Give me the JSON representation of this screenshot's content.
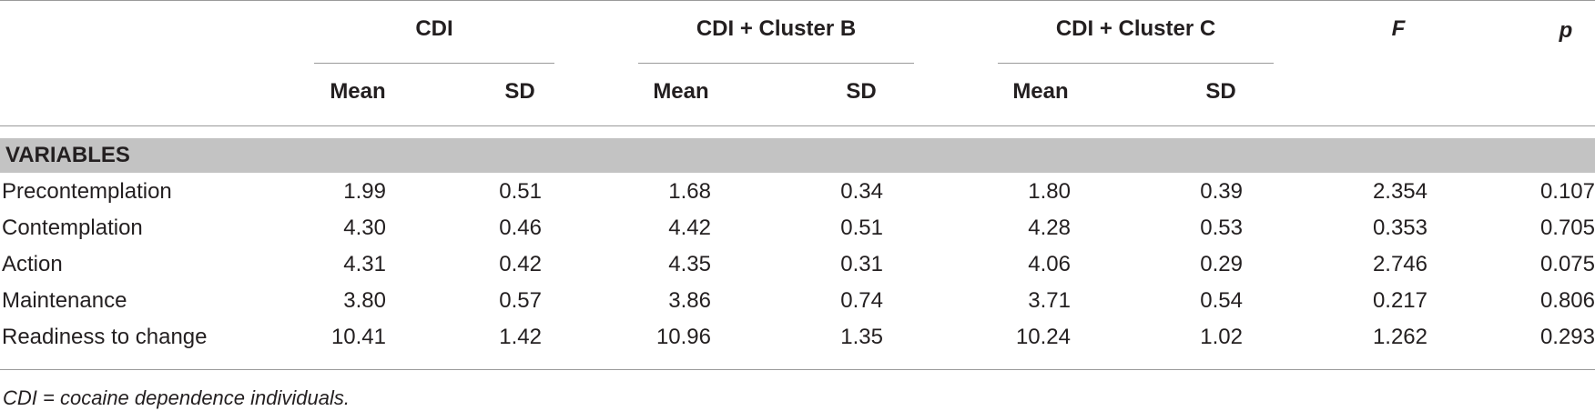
{
  "table": {
    "groups": [
      "CDI",
      "CDI + Cluster B",
      "CDI + Cluster C"
    ],
    "stat_headers": {
      "f": "F",
      "p": "p"
    },
    "subheaders": [
      "Mean",
      "SD",
      "Mean",
      "SD",
      "Mean",
      "SD"
    ],
    "section_label": "VARIABLES",
    "rows": [
      {
        "label": "Precontemplation",
        "values": [
          "1.99",
          "0.51",
          "1.68",
          "0.34",
          "1.80",
          "0.39",
          "2.354",
          "0.107"
        ]
      },
      {
        "label": "Contemplation",
        "values": [
          "4.30",
          "0.46",
          "4.42",
          "0.51",
          "4.28",
          "0.53",
          "0.353",
          "0.705"
        ]
      },
      {
        "label": "Action",
        "values": [
          "4.31",
          "0.42",
          "4.35",
          "0.31",
          "4.06",
          "0.29",
          "2.746",
          "0.075"
        ]
      },
      {
        "label": "Maintenance",
        "values": [
          "3.80",
          "0.57",
          "3.86",
          "0.74",
          "3.71",
          "0.54",
          "0.217",
          "0.806"
        ]
      },
      {
        "label": "Readiness to change",
        "values": [
          "10.41",
          "1.42",
          "10.96",
          "1.35",
          "10.24",
          "1.02",
          "1.262",
          "0.293"
        ]
      }
    ],
    "footnote": "CDI = cocaine dependence individuals."
  }
}
